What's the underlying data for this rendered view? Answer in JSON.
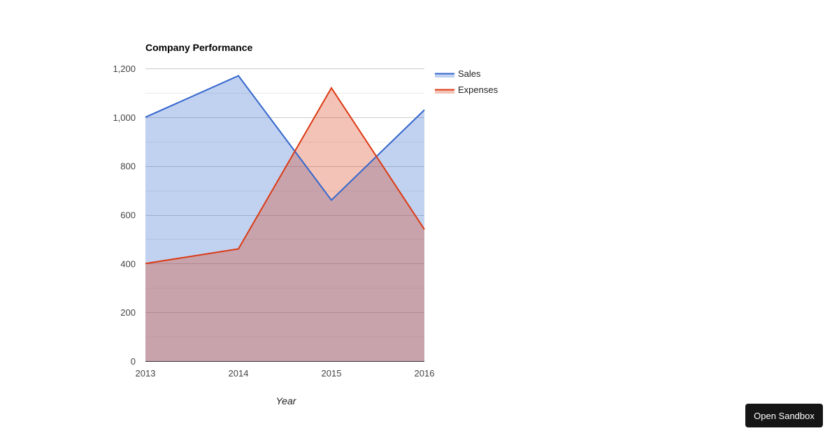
{
  "chart_data": {
    "type": "area",
    "title": "Company Performance",
    "xlabel": "Year",
    "ylabel": "",
    "categories": [
      "2013",
      "2014",
      "2015",
      "2016"
    ],
    "series": [
      {
        "name": "Sales",
        "values": [
          1000,
          1170,
          660,
          1030
        ],
        "color": "#3366cc"
      },
      {
        "name": "Expenses",
        "values": [
          400,
          460,
          1120,
          540
        ],
        "color": "#dc3912"
      }
    ],
    "ylim": [
      0,
      1200
    ],
    "yticks": [
      "0",
      "200",
      "400",
      "600",
      "800",
      "1,000",
      "1,200"
    ],
    "grid": true,
    "legend_position": "right"
  },
  "button": {
    "open_sandbox": "Open Sandbox"
  }
}
